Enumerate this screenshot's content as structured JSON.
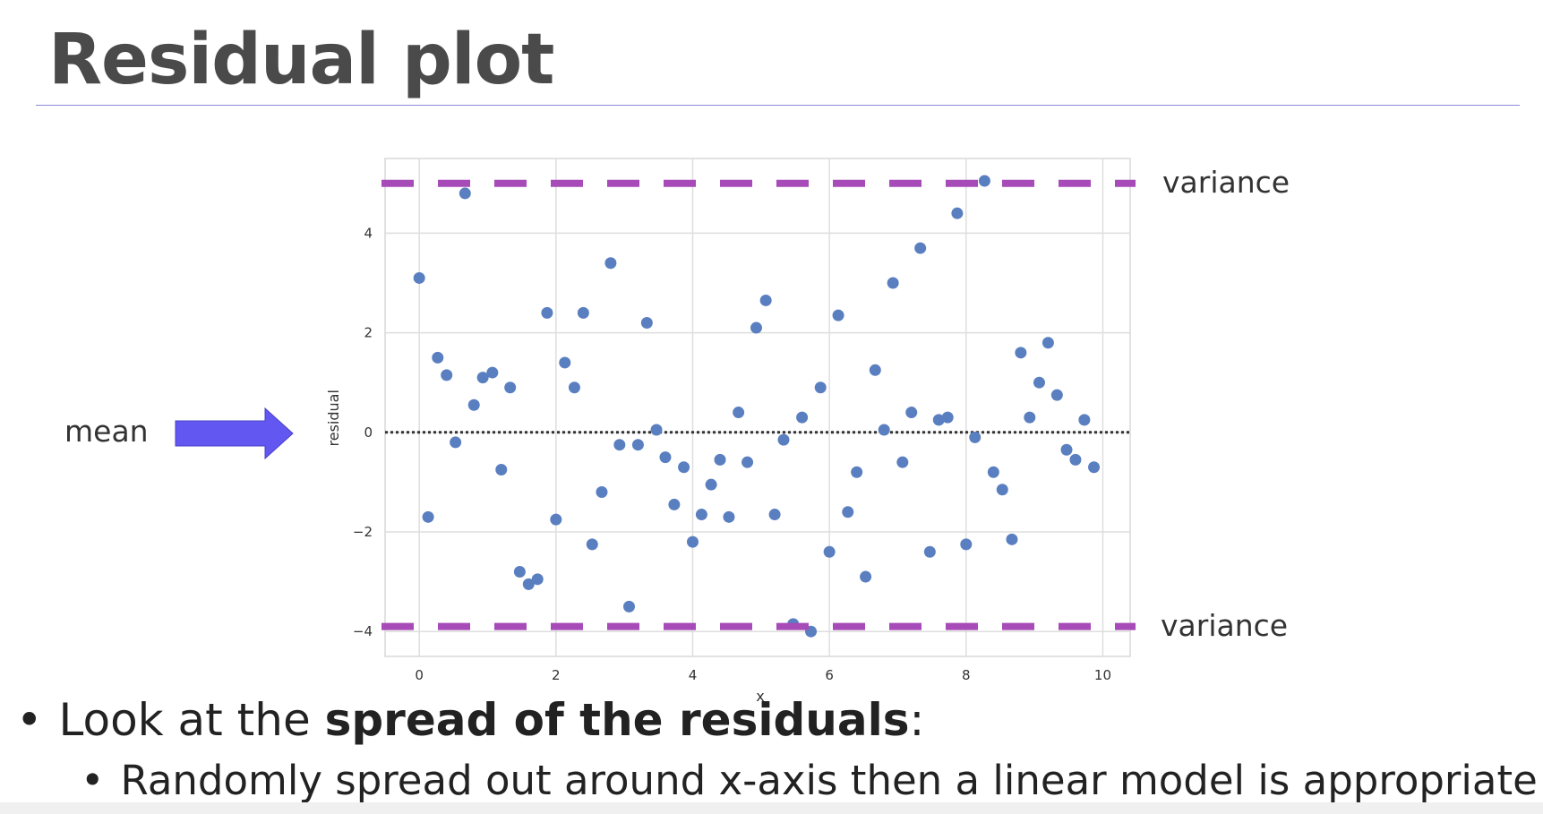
{
  "slide": {
    "title": "Residual plot",
    "mean_label": "mean",
    "variance_top_label": "variance",
    "variance_bottom_label": "variance",
    "bullet1_pre": "Look at the ",
    "bullet1_bold": "spread of the residuals",
    "bullet1_post": ":",
    "bullet2": "Randomly spread out around x-axis then a linear model is appropriate",
    "bullet_glyph": "•",
    "colors": {
      "arrow": "#6257f0",
      "variance_line": "#a64bb8",
      "points": "#5a7fc0",
      "title": "#4a4a4a"
    }
  },
  "chart_data": {
    "type": "scatter",
    "xlabel": "x",
    "ylabel": "residual",
    "xlim": [
      -0.5,
      10.4
    ],
    "ylim": [
      -4.5,
      5.5
    ],
    "x_ticks": [
      0,
      2,
      4,
      6,
      8,
      10
    ],
    "y_ticks": [
      -4,
      -2,
      0,
      2,
      4
    ],
    "grid": true,
    "mean_line_y": 0,
    "variance_lines_y": [
      5.0,
      -3.9
    ],
    "points": [
      [
        0.0,
        3.1
      ],
      [
        0.13,
        -1.7
      ],
      [
        0.27,
        1.5
      ],
      [
        0.4,
        1.15
      ],
      [
        0.53,
        -0.2
      ],
      [
        0.67,
        4.8
      ],
      [
        0.8,
        0.55
      ],
      [
        0.93,
        1.1
      ],
      [
        1.07,
        1.2
      ],
      [
        1.2,
        -0.75
      ],
      [
        1.33,
        0.9
      ],
      [
        1.47,
        -2.8
      ],
      [
        1.6,
        -3.05
      ],
      [
        1.73,
        -2.95
      ],
      [
        1.87,
        2.4
      ],
      [
        2.0,
        -1.75
      ],
      [
        2.13,
        1.4
      ],
      [
        2.27,
        0.9
      ],
      [
        2.4,
        2.4
      ],
      [
        2.53,
        -2.25
      ],
      [
        2.67,
        -1.2
      ],
      [
        2.8,
        3.4
      ],
      [
        2.93,
        -0.25
      ],
      [
        3.07,
        -3.5
      ],
      [
        3.2,
        -0.25
      ],
      [
        3.33,
        2.2
      ],
      [
        3.47,
        0.05
      ],
      [
        3.6,
        -0.5
      ],
      [
        3.73,
        -1.45
      ],
      [
        3.87,
        -0.7
      ],
      [
        4.0,
        -2.2
      ],
      [
        4.13,
        -1.65
      ],
      [
        4.27,
        -1.05
      ],
      [
        4.4,
        -0.55
      ],
      [
        4.53,
        -1.7
      ],
      [
        4.67,
        0.4
      ],
      [
        4.8,
        -0.6
      ],
      [
        4.93,
        2.1
      ],
      [
        5.07,
        2.65
      ],
      [
        5.2,
        -1.65
      ],
      [
        5.33,
        -0.15
      ],
      [
        5.47,
        -3.85
      ],
      [
        5.6,
        0.3
      ],
      [
        5.73,
        -4.0
      ],
      [
        5.87,
        0.9
      ],
      [
        6.0,
        -2.4
      ],
      [
        6.13,
        2.35
      ],
      [
        6.27,
        -1.6
      ],
      [
        6.4,
        -0.8
      ],
      [
        6.53,
        -2.9
      ],
      [
        6.67,
        1.25
      ],
      [
        6.8,
        0.05
      ],
      [
        6.93,
        3.0
      ],
      [
        7.07,
        -0.6
      ],
      [
        7.2,
        0.4
      ],
      [
        7.33,
        3.7
      ],
      [
        7.47,
        -2.4
      ],
      [
        7.6,
        0.25
      ],
      [
        7.73,
        0.3
      ],
      [
        7.87,
        4.4
      ],
      [
        8.0,
        -2.25
      ],
      [
        8.13,
        -0.1
      ],
      [
        8.27,
        5.05
      ],
      [
        8.4,
        -0.8
      ],
      [
        8.53,
        -1.15
      ],
      [
        8.67,
        -2.15
      ],
      [
        8.8,
        1.6
      ],
      [
        8.93,
        0.3
      ],
      [
        9.07,
        1.0
      ],
      [
        9.2,
        1.8
      ],
      [
        9.33,
        0.75
      ],
      [
        9.47,
        -0.35
      ],
      [
        9.6,
        -0.55
      ],
      [
        9.73,
        0.25
      ],
      [
        9.87,
        -0.7
      ]
    ]
  }
}
